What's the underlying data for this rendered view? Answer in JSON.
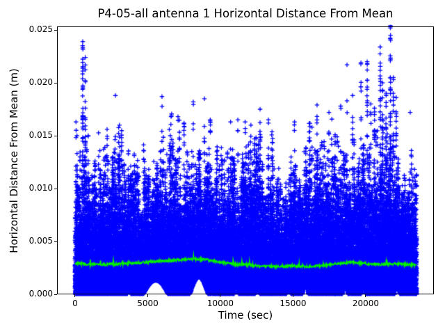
{
  "chart_data": {
    "type": "scatter",
    "title": "P4-05-all antenna 1 Horizontal Distance From Mean",
    "xlabel": "Time (sec)",
    "ylabel": "Horizontal Distance From Mean (m)",
    "background": "#ffffff",
    "axes_color": "#000000",
    "grid": false,
    "legend": null,
    "xlim": [
      -1244,
      24689
    ],
    "ylim": [
      0,
      0.02533
    ],
    "xticks": {
      "values": [
        0,
        5000,
        10000,
        15000,
        20000
      ],
      "labels": [
        "0",
        "5000",
        "10000",
        "15000",
        "20000"
      ]
    },
    "yticks": {
      "values": [
        0,
        0.005,
        0.01,
        0.015,
        0.02,
        0.025
      ],
      "labels": [
        "0.000",
        "0.005",
        "0.010",
        "0.015",
        "0.020",
        "0.025"
      ]
    },
    "series": [
      {
        "name": "horizontal-distance-scatter",
        "type": "scatter",
        "marker": "+",
        "color": "#0000ff",
        "t_range": [
          0,
          23500
        ],
        "description": "Dense cloud of + markers, solid from 0 up to ~0.006-0.009 m with spiky vertical streaks reaching 0.010-0.017 m across the whole record and a few extreme columns above 0.02 m",
        "envelope": {
          "t": [
            0,
            1000,
            2000,
            3000,
            4000,
            5000,
            6000,
            7000,
            8000,
            9000,
            10000,
            11000,
            12000,
            13000,
            14000,
            15000,
            16000,
            17000,
            18000,
            19000,
            20000,
            21000,
            22000,
            23000,
            23500
          ],
          "max": [
            0.015,
            0.014,
            0.0148,
            0.015,
            0.0128,
            0.014,
            0.015,
            0.0158,
            0.015,
            0.016,
            0.0138,
            0.0152,
            0.0155,
            0.015,
            0.0132,
            0.0148,
            0.015,
            0.0155,
            0.0145,
            0.0155,
            0.016,
            0.0168,
            0.015,
            0.0132,
            0.0122
          ]
        },
        "extreme_columns": [
          [
            60,
            0.0163,
            6
          ],
          [
            130,
            0.015,
            8
          ],
          [
            525,
            0.0239,
            55
          ],
          [
            700,
            0.0224,
            30
          ],
          [
            900,
            0.015,
            10
          ],
          [
            2200,
            0.0156,
            10
          ],
          [
            2775,
            0.0188,
            2
          ],
          [
            3050,
            0.016,
            8
          ],
          [
            5980,
            0.0187,
            8
          ],
          [
            6550,
            0.015,
            10
          ],
          [
            7080,
            0.0168,
            8
          ],
          [
            8130,
            0.0182,
            8
          ],
          [
            8900,
            0.0185,
            12
          ],
          [
            9300,
            0.0165,
            10
          ],
          [
            10700,
            0.0163,
            8
          ],
          [
            11200,
            0.0165,
            10
          ],
          [
            11700,
            0.0163,
            10
          ],
          [
            12100,
            0.016,
            8
          ],
          [
            12730,
            0.0175,
            5
          ],
          [
            13300,
            0.0165,
            8
          ],
          [
            15100,
            0.0163,
            8
          ],
          [
            16300,
            0.0158,
            8
          ],
          [
            16650,
            0.0179,
            3
          ],
          [
            17470,
            0.0172,
            12
          ],
          [
            18280,
            0.0178,
            12
          ],
          [
            18710,
            0.0217,
            10
          ],
          [
            19100,
            0.0188,
            22
          ],
          [
            19670,
            0.0219,
            16
          ],
          [
            20100,
            0.022,
            28
          ],
          [
            20350,
            0.018,
            18
          ],
          [
            20600,
            0.0176,
            18
          ],
          [
            21000,
            0.0234,
            45
          ],
          [
            21150,
            0.02,
            25
          ],
          [
            21400,
            0.019,
            28
          ],
          [
            21700,
            0.0254,
            60
          ],
          [
            21900,
            0.0205,
            25
          ],
          [
            22100,
            0.0186,
            18
          ],
          [
            23060,
            0.0172,
            2
          ]
        ],
        "bottom_gaps": [
          [
            3600,
            3820,
            0.0006
          ],
          [
            4700,
            6400,
            0.0013
          ],
          [
            7900,
            9150,
            0.0016
          ],
          [
            10950,
            11250,
            0.0008
          ],
          [
            12400,
            12700,
            0.0007
          ],
          [
            14550,
            14850,
            0.0008
          ],
          [
            15650,
            16050,
            0.0011
          ],
          [
            18400,
            18750,
            0.0011
          ],
          [
            19700,
            20000,
            0.0009
          ],
          [
            22000,
            22350,
            0.001
          ]
        ]
      },
      {
        "name": "running-mean-line",
        "type": "line",
        "color": "#00ee00",
        "width": 1.8,
        "samples": {
          "t": [
            0,
            1000,
            2000,
            3000,
            4000,
            5000,
            6000,
            7000,
            8000,
            9000,
            10000,
            11000,
            12000,
            13000,
            14000,
            15000,
            16000,
            17000,
            18000,
            19000,
            20000,
            21000,
            22000,
            23000,
            23500
          ],
          "y": [
            0.00295,
            0.00285,
            0.00283,
            0.00287,
            0.00295,
            0.00305,
            0.00315,
            0.00325,
            0.00334,
            0.00327,
            0.00305,
            0.00285,
            0.00275,
            0.00265,
            0.00262,
            0.0027,
            0.00262,
            0.0027,
            0.0029,
            0.00304,
            0.00291,
            0.00281,
            0.0029,
            0.00281,
            0.00276
          ]
        }
      }
    ]
  }
}
